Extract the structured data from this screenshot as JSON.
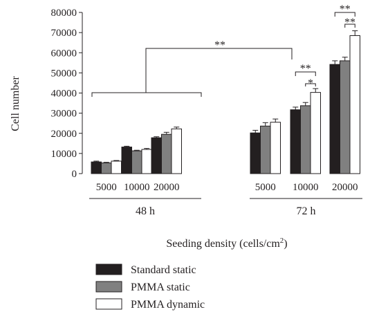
{
  "chart_data": {
    "type": "bar",
    "ylabel": "Cell number",
    "xlabel_main": "Seeding density (cells/cm",
    "xlabel_sup": "2",
    "xlabel_end": ")",
    "ylim": [
      0,
      80000
    ],
    "yticks": [
      "0",
      "10000",
      "20000",
      "30000",
      "40000",
      "50000",
      "60000",
      "70000",
      "80000"
    ],
    "groups": [
      {
        "label": "48 h",
        "categories": [
          "5000",
          "10000",
          "20000"
        ]
      },
      {
        "label": "72 h",
        "categories": [
          "5000",
          "10000",
          "20000"
        ]
      }
    ],
    "series": [
      {
        "name": "Standard static",
        "color": "#231f20",
        "values": [
          5800,
          13200,
          17800,
          20200,
          31700,
          54200
        ],
        "errors": [
          400,
          400,
          500,
          1300,
          1300,
          1800
        ]
      },
      {
        "name": "PMMA static",
        "color": "#808080",
        "values": [
          5300,
          11300,
          19500,
          23600,
          33700,
          56000
        ],
        "errors": [
          300,
          300,
          1000,
          1700,
          1600,
          1800
        ]
      },
      {
        "name": "PMMA dynamic",
        "color": "#ffffff",
        "values": [
          6200,
          12000,
          22200,
          25500,
          40300,
          68500
        ],
        "errors": [
          300,
          500,
          900,
          1600,
          1900,
          2400
        ]
      }
    ],
    "annotations": [
      {
        "text": "**",
        "kind": "between-timepoints"
      },
      {
        "text": "**",
        "kind": "72h-10000-std-vs-dyn"
      },
      {
        "text": "*",
        "kind": "72h-10000-pmma-vs-dyn"
      },
      {
        "text": "**",
        "kind": "72h-20000-std-vs-dyn"
      },
      {
        "text": "**",
        "kind": "72h-20000-pmma-vs-dyn"
      }
    ],
    "legend_position": "bottom-left"
  }
}
